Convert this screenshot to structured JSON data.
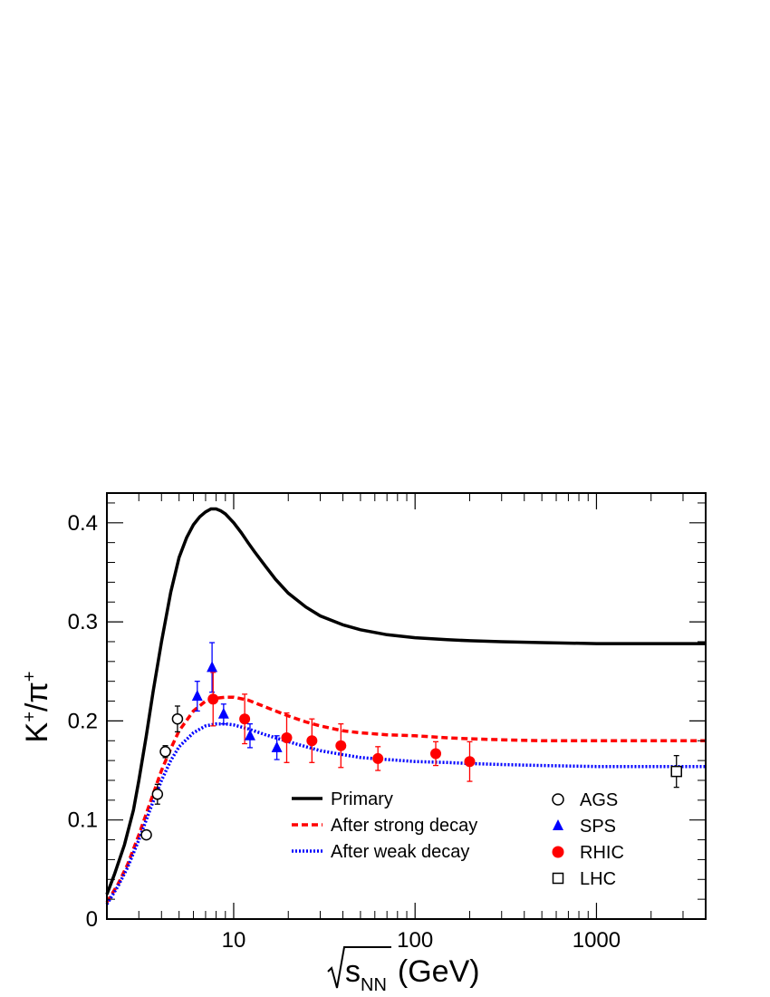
{
  "chart_data": {
    "type": "line",
    "title": "",
    "xlabel": {
      "base": "s",
      "subscript": "NN",
      "unit": "(GeV)",
      "sqrt": true
    },
    "ylabel": {
      "k": "K",
      "kcharge": "+",
      "slash": "/",
      "pi": "π",
      "picharge": "+"
    },
    "xscale": "log",
    "xlim": [
      2,
      4000
    ],
    "ylim": [
      0,
      0.43
    ],
    "grid": false,
    "x_ticks": [
      10,
      100,
      1000
    ],
    "x_tick_labels": [
      "10",
      "100",
      "1000"
    ],
    "y_ticks": [
      0,
      0.1,
      0.2,
      0.3,
      0.4
    ],
    "y_tick_labels": [
      "0",
      "0.1",
      "0.2",
      "0.3",
      "0.4"
    ],
    "legend_position": "bottom-right",
    "curves": [
      {
        "name": "Primary",
        "color": "#000000",
        "style": "solid",
        "x": [
          2.0,
          2.2,
          2.5,
          2.8,
          3.0,
          3.3,
          3.6,
          4.0,
          4.5,
          5.0,
          5.5,
          6.0,
          6.5,
          7.0,
          7.5,
          8.0,
          8.5,
          9.0,
          10,
          11,
          12,
          13,
          15,
          17,
          20,
          25,
          30,
          40,
          50,
          70,
          100,
          150,
          200,
          300,
          500,
          1000,
          2000,
          4000
        ],
        "y": [
          0.025,
          0.045,
          0.075,
          0.11,
          0.14,
          0.185,
          0.23,
          0.28,
          0.33,
          0.365,
          0.385,
          0.398,
          0.406,
          0.411,
          0.414,
          0.414,
          0.412,
          0.409,
          0.4,
          0.39,
          0.38,
          0.371,
          0.356,
          0.343,
          0.329,
          0.315,
          0.306,
          0.297,
          0.292,
          0.287,
          0.284,
          0.282,
          0.281,
          0.28,
          0.279,
          0.278,
          0.278,
          0.278
        ]
      },
      {
        "name": "After strong decay",
        "color": "#ff0000",
        "style": "dashed",
        "x": [
          2.0,
          2.3,
          2.6,
          3.0,
          3.5,
          4.0,
          4.5,
          5.0,
          6.0,
          7.0,
          8.0,
          9.0,
          10,
          12,
          15,
          20,
          25,
          30,
          40,
          50,
          70,
          100,
          150,
          200,
          300,
          500,
          1000,
          2000,
          4000
        ],
        "y": [
          0.017,
          0.035,
          0.055,
          0.085,
          0.12,
          0.15,
          0.172,
          0.19,
          0.21,
          0.22,
          0.223,
          0.224,
          0.224,
          0.221,
          0.214,
          0.205,
          0.199,
          0.195,
          0.19,
          0.188,
          0.186,
          0.185,
          0.183,
          0.182,
          0.181,
          0.18,
          0.18,
          0.18,
          0.18
        ]
      },
      {
        "name": "After weak decay",
        "color": "#0000ff",
        "style": "dotted",
        "x": [
          2.0,
          2.3,
          2.6,
          3.0,
          3.5,
          4.0,
          4.5,
          5.0,
          6.0,
          7.0,
          8.0,
          9.0,
          10,
          12,
          15,
          20,
          25,
          30,
          40,
          50,
          70,
          100,
          150,
          200,
          300,
          500,
          1000,
          2000,
          4000
        ],
        "y": [
          0.015,
          0.033,
          0.052,
          0.08,
          0.113,
          0.14,
          0.16,
          0.174,
          0.188,
          0.195,
          0.197,
          0.197,
          0.196,
          0.192,
          0.186,
          0.179,
          0.174,
          0.17,
          0.166,
          0.163,
          0.161,
          0.159,
          0.158,
          0.157,
          0.156,
          0.155,
          0.154,
          0.154,
          0.154
        ]
      }
    ],
    "series": [
      {
        "name": "AGS",
        "marker": "open-circle",
        "color": "#000000",
        "points": [
          {
            "x": 3.3,
            "y": 0.085,
            "err": 0
          },
          {
            "x": 3.8,
            "y": 0.126,
            "err": 0.01
          },
          {
            "x": 4.2,
            "y": 0.169,
            "err": 0.006
          },
          {
            "x": 4.9,
            "y": 0.202,
            "err": 0.013
          }
        ]
      },
      {
        "name": "SPS",
        "marker": "filled-triangle",
        "color": "#0000ff",
        "points": [
          {
            "x": 6.3,
            "y": 0.225,
            "err": 0.015
          },
          {
            "x": 7.6,
            "y": 0.254,
            "err": 0.025
          },
          {
            "x": 8.8,
            "y": 0.207,
            "err": 0.01
          },
          {
            "x": 12.3,
            "y": 0.185,
            "err": 0.012
          },
          {
            "x": 17.3,
            "y": 0.173,
            "err": 0.012
          }
        ]
      },
      {
        "name": "RHIC",
        "marker": "filled-circle",
        "color": "#ff0000",
        "points": [
          {
            "x": 7.7,
            "y": 0.222,
            "err": 0.027
          },
          {
            "x": 11.5,
            "y": 0.202,
            "err": 0.025
          },
          {
            "x": 19.6,
            "y": 0.183,
            "err": 0.025
          },
          {
            "x": 27,
            "y": 0.18,
            "err": 0.022
          },
          {
            "x": 39,
            "y": 0.175,
            "err": 0.022
          },
          {
            "x": 62.4,
            "y": 0.162,
            "err": 0.012
          },
          {
            "x": 130,
            "y": 0.167,
            "err": 0.012
          },
          {
            "x": 200,
            "y": 0.159,
            "err": 0.02
          }
        ]
      },
      {
        "name": "LHC",
        "marker": "open-square",
        "color": "#000000",
        "points": [
          {
            "x": 2760,
            "y": 0.149,
            "err": 0.016
          }
        ]
      }
    ]
  }
}
